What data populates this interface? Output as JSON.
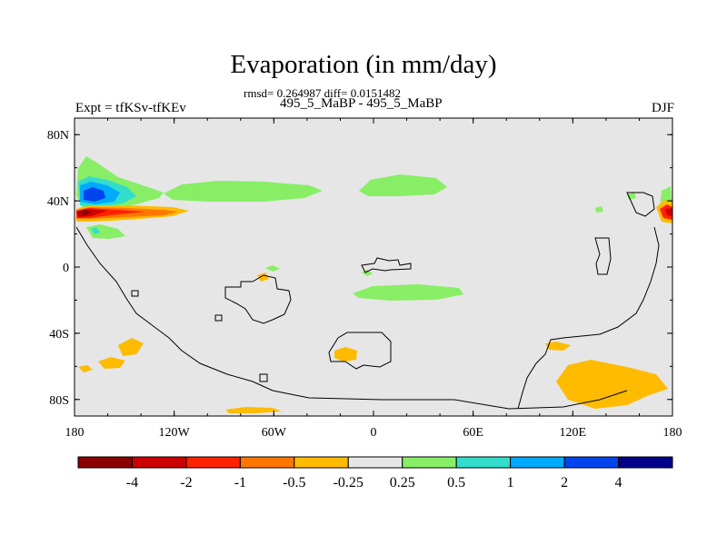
{
  "chart_data": {
    "type": "heatmap",
    "title": "Evaporation (in mm/day)",
    "stats_text": "rmsd= 0.264987 diff= 0.0151482",
    "subtitle": "495_5_MaBP - 495_5_MaBP",
    "left_label": "Expt = tfKSv-tfKEv",
    "right_label": "DJF",
    "x_ticks": [
      "180",
      "120W",
      "60W",
      "0",
      "60E",
      "120E",
      "180"
    ],
    "x_tick_values": [
      -180,
      -120,
      -60,
      0,
      60,
      120,
      180
    ],
    "y_ticks": [
      "80N",
      "40N",
      "0",
      "40S",
      "80S"
    ],
    "y_tick_values": [
      80,
      40,
      0,
      -40,
      -80
    ],
    "xlim": [
      -180,
      180
    ],
    "ylim": [
      -90,
      90
    ],
    "colorbar": {
      "labels": [
        "-4",
        "-2",
        "-1",
        "-0.5",
        "-0.25",
        "0.25",
        "0.5",
        "1",
        "2",
        "4"
      ],
      "colors": [
        "#8b0000",
        "#cc0000",
        "#ff2200",
        "#ff7700",
        "#ffbb00",
        "#e6e6e6",
        "#88ee66",
        "#33ddcc",
        "#00aaff",
        "#0044ee",
        "#00008b"
      ]
    },
    "background_color": "#e6e6e6"
  }
}
